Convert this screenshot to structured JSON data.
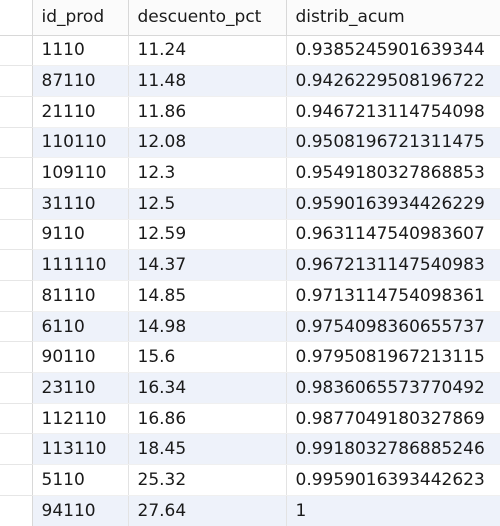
{
  "columns": [
    "id_prod",
    "descuento_pct",
    "distrib_acum"
  ],
  "rows": [
    [
      "1110",
      "11.24",
      "0.9385245901639344"
    ],
    [
      "87110",
      "11.48",
      "0.9426229508196722"
    ],
    [
      "21110",
      "11.86",
      "0.9467213114754098"
    ],
    [
      "110110",
      "12.08",
      "0.9508196721311475"
    ],
    [
      "109110",
      "12.3",
      "0.9549180327868853"
    ],
    [
      "31110",
      "12.5",
      "0.9590163934426229"
    ],
    [
      "9110",
      "12.59",
      "0.9631147540983607"
    ],
    [
      "111110",
      "14.37",
      "0.9672131147540983"
    ],
    [
      "81110",
      "14.85",
      "0.9713114754098361"
    ],
    [
      "6110",
      "14.98",
      "0.9754098360655737"
    ],
    [
      "90110",
      "15.6",
      "0.9795081967213115"
    ],
    [
      "23110",
      "16.34",
      "0.9836065573770492"
    ],
    [
      "112110",
      "16.86",
      "0.9877049180327869"
    ],
    [
      "113110",
      "18.45",
      "0.9918032786885246"
    ],
    [
      "5110",
      "25.32",
      "0.9959016393442623"
    ],
    [
      "94110",
      "27.64",
      "1"
    ]
  ],
  "colors": {
    "header_bg": "#fbfbfb",
    "row_alt_bg": "#eef2fa",
    "grid_line": "#d8d8d8",
    "text": "#1a1a1a"
  }
}
